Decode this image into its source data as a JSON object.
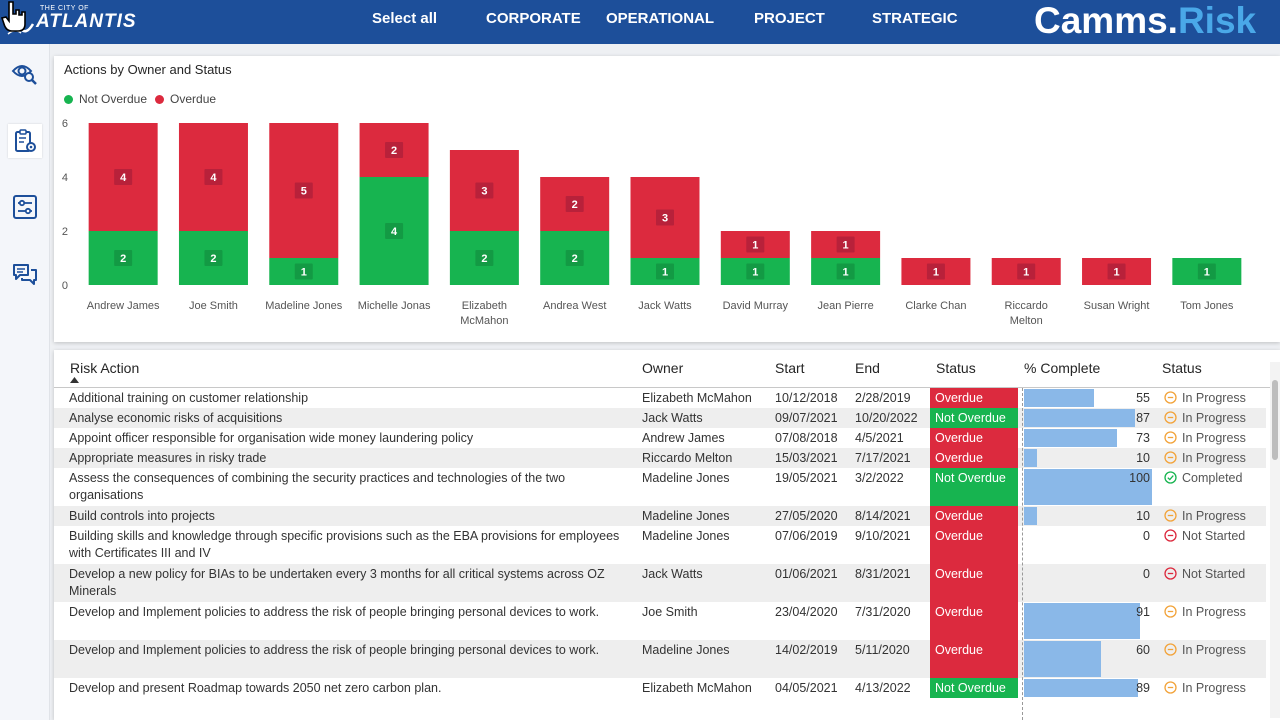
{
  "header": {
    "logo_small": "THE CITY OF",
    "logo_big": "ATLANTIS",
    "nav": [
      "Select all",
      "CORPORATE",
      "OPERATIONAL",
      "PROJECT",
      "STRATEGIC"
    ],
    "brand_part1": "Camms.",
    "brand_part2": "Risk"
  },
  "sidebar": {
    "icons": [
      "eye-search-icon",
      "clipboard-gear-icon",
      "sliders-icon",
      "chat-icon"
    ]
  },
  "chart_section": {
    "title": "Actions by Owner and Status"
  },
  "colors": {
    "not_overdue": "#17b450",
    "overdue": "#dc2a3e",
    "header_bg": "#1d4f9a",
    "bar_fill": "#8ab8e8"
  },
  "chart_data": {
    "type": "bar",
    "stacked": true,
    "title": "Actions by Owner and Status",
    "categories": [
      "Andrew James",
      "Joe Smith",
      "Madeline Jones",
      "Michelle Jonas",
      "Elizabeth McMahon",
      "Andrea West",
      "Jack Watts",
      "David Murray",
      "Jean Pierre",
      "Clarke Chan",
      "Riccardo Melton",
      "Susan Wright",
      "Tom Jones"
    ],
    "series": [
      {
        "name": "Not Overdue",
        "values": [
          2,
          2,
          1,
          4,
          2,
          2,
          1,
          1,
          1,
          0,
          0,
          0,
          1
        ]
      },
      {
        "name": "Overdue",
        "values": [
          4,
          4,
          5,
          2,
          3,
          2,
          3,
          1,
          1,
          1,
          1,
          1,
          0
        ]
      }
    ],
    "yticks": [
      "0",
      "2",
      "4",
      "6"
    ],
    "ylim": [
      0,
      6
    ],
    "legend_position": "top-left",
    "grid": false
  },
  "table": {
    "headers": [
      "Risk Action",
      "Owner",
      "Start",
      "End",
      "Status",
      "% Complete",
      "Status"
    ],
    "rows": [
      {
        "action": "Additional training on customer relationship",
        "owner": "Elizabeth McMahon",
        "start": "10/12/2018",
        "end": "2/28/2019",
        "status": "Overdue",
        "pct": "55",
        "pct_value": 55,
        "state": "In Progress"
      },
      {
        "action": "Analyse economic risks of acquisitions",
        "owner": "Jack Watts",
        "start": "09/07/2021",
        "end": "10/20/2022",
        "status": "Not Overdue",
        "pct": "87",
        "pct_value": 87,
        "state": "In Progress"
      },
      {
        "action": "Appoint officer responsible for organisation wide money laundering policy",
        "owner": "Andrew James",
        "start": "07/08/2018",
        "end": "4/5/2021",
        "status": "Overdue",
        "pct": "73",
        "pct_value": 73,
        "state": "In Progress"
      },
      {
        "action": "Appropriate measures in risky trade",
        "owner": "Riccardo Melton",
        "start": "15/03/2021",
        "end": "7/17/2021",
        "status": "Overdue",
        "pct": "10",
        "pct_value": 10,
        "state": "In Progress"
      },
      {
        "action": "Assess the consequences of combining the security practices and technologies of the two organisations",
        "owner": "Madeline Jones",
        "start": "19/05/2021",
        "end": "3/2/2022",
        "status": "Not Overdue",
        "pct": "100",
        "pct_value": 100,
        "state": "Completed"
      },
      {
        "action": "Build controls into projects",
        "owner": "Madeline Jones",
        "start": "27/05/2020",
        "end": "8/14/2021",
        "status": "Overdue",
        "pct": "10",
        "pct_value": 10,
        "state": "In Progress"
      },
      {
        "action": "Building skills and knowledge through specific provisions such as the EBA provisions for employees with Certificates III and IV",
        "owner": "Madeline Jones",
        "start": "07/06/2019",
        "end": "9/10/2021",
        "status": "Overdue",
        "pct": "0",
        "pct_value": 0,
        "state": "Not Started"
      },
      {
        "action": "Develop a new policy for BIAs to be undertaken every 3 months for all critical systems across OZ Minerals",
        "owner": "Jack Watts",
        "start": "01/06/2021",
        "end": "8/31/2021",
        "status": "Overdue",
        "pct": "0",
        "pct_value": 0,
        "state": "Not Started"
      },
      {
        "action": "Develop and Implement policies to address the risk of people bringing personal devices to work.",
        "owner": "Joe Smith",
        "start": "23/04/2020",
        "end": "7/31/2020",
        "status": "Overdue",
        "pct": "91",
        "pct_value": 91,
        "state": "In Progress"
      },
      {
        "action": "Develop and Implement policies to address the risk of people bringing personal devices to work.",
        "owner": "Madeline Jones",
        "start": "14/02/2019",
        "end": "5/11/2020",
        "status": "Overdue",
        "pct": "60",
        "pct_value": 60,
        "state": "In Progress"
      },
      {
        "action": "Develop and present Roadmap towards 2050 net zero carbon plan.",
        "owner": "Elizabeth McMahon",
        "start": "04/05/2021",
        "end": "4/13/2022",
        "status": "Not Overdue",
        "pct": "89",
        "pct_value": 89,
        "state": "In Progress"
      }
    ]
  }
}
